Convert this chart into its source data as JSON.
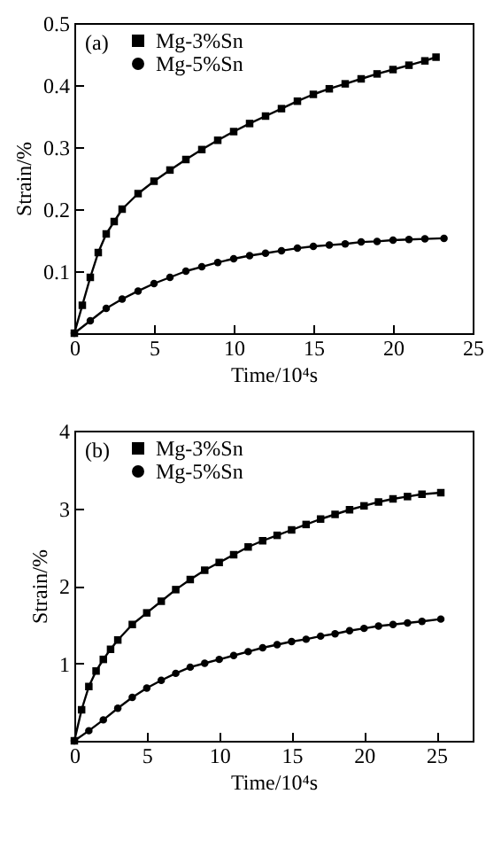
{
  "chart_data": [
    {
      "type": "line",
      "annotations": [
        "(a)"
      ],
      "xlabel": "Time/10⁴s",
      "ylabel": "Strain/%",
      "xlim": [
        0,
        25
      ],
      "ylim": [
        0,
        0.5
      ],
      "xticks": [
        0,
        5,
        10,
        15,
        20,
        25
      ],
      "yticks": [
        0.1,
        0.2,
        0.3,
        0.4,
        0.5
      ],
      "grid": false,
      "legend": "top left",
      "series": [
        {
          "name": "Mg-3%Sn",
          "color": "#000000",
          "marker": "square",
          "x": [
            0,
            0.5,
            1,
            1.5,
            2,
            2.5,
            3,
            4,
            5,
            6,
            7,
            8,
            9,
            10,
            11,
            12,
            13,
            14,
            15,
            16,
            17,
            18,
            19,
            20,
            21,
            22,
            22.7
          ],
          "values": [
            0,
            0.045,
            0.09,
            0.13,
            0.16,
            0.18,
            0.2,
            0.225,
            0.245,
            0.263,
            0.28,
            0.296,
            0.311,
            0.325,
            0.338,
            0.35,
            0.362,
            0.374,
            0.385,
            0.394,
            0.402,
            0.41,
            0.418,
            0.425,
            0.432,
            0.439,
            0.445
          ]
        },
        {
          "name": "Mg-5%Sn",
          "color": "#000000",
          "marker": "circle",
          "x": [
            0,
            1,
            2,
            3,
            4,
            5,
            6,
            7,
            8,
            9,
            10,
            11,
            12,
            13,
            14,
            15,
            16,
            17,
            18,
            19,
            20,
            21,
            22,
            23.2
          ],
          "values": [
            0,
            0.02,
            0.04,
            0.055,
            0.068,
            0.08,
            0.09,
            0.1,
            0.107,
            0.114,
            0.12,
            0.125,
            0.129,
            0.133,
            0.137,
            0.14,
            0.142,
            0.144,
            0.147,
            0.148,
            0.15,
            0.151,
            0.152,
            0.153
          ]
        }
      ]
    },
    {
      "type": "line",
      "annotations": [
        "(b)"
      ],
      "xlabel": "Time/10⁴s",
      "ylabel": "Strain/%",
      "xlim": [
        0,
        27.5
      ],
      "ylim": [
        0,
        4
      ],
      "xticks": [
        0,
        5,
        10,
        15,
        20,
        25
      ],
      "yticks": [
        1,
        2,
        3,
        4
      ],
      "grid": false,
      "legend": "top left",
      "series": [
        {
          "name": "Mg-3%Sn",
          "color": "#000000",
          "marker": "square",
          "x": [
            0,
            0.5,
            1,
            1.5,
            2,
            2.5,
            3,
            4,
            5,
            6,
            7,
            8,
            9,
            10,
            11,
            12,
            13,
            14,
            15,
            16,
            17,
            18,
            19,
            20,
            21,
            22,
            23,
            24,
            25.3
          ],
          "values": [
            0,
            0.4,
            0.7,
            0.9,
            1.05,
            1.18,
            1.3,
            1.5,
            1.65,
            1.8,
            1.95,
            2.08,
            2.2,
            2.3,
            2.4,
            2.5,
            2.58,
            2.65,
            2.72,
            2.79,
            2.86,
            2.92,
            2.98,
            3.03,
            3.08,
            3.12,
            3.15,
            3.18,
            3.2
          ]
        },
        {
          "name": "Mg-5%Sn",
          "color": "#000000",
          "marker": "circle",
          "x": [
            0,
            1,
            2,
            3,
            4,
            5,
            6,
            7,
            8,
            9,
            10,
            11,
            12,
            13,
            14,
            15,
            16,
            17,
            18,
            19,
            20,
            21,
            22,
            23,
            24,
            25.3
          ],
          "values": [
            0,
            0.13,
            0.27,
            0.42,
            0.56,
            0.68,
            0.78,
            0.87,
            0.95,
            1.0,
            1.05,
            1.1,
            1.15,
            1.2,
            1.24,
            1.28,
            1.31,
            1.35,
            1.38,
            1.42,
            1.45,
            1.48,
            1.5,
            1.52,
            1.54,
            1.57
          ]
        }
      ]
    }
  ]
}
